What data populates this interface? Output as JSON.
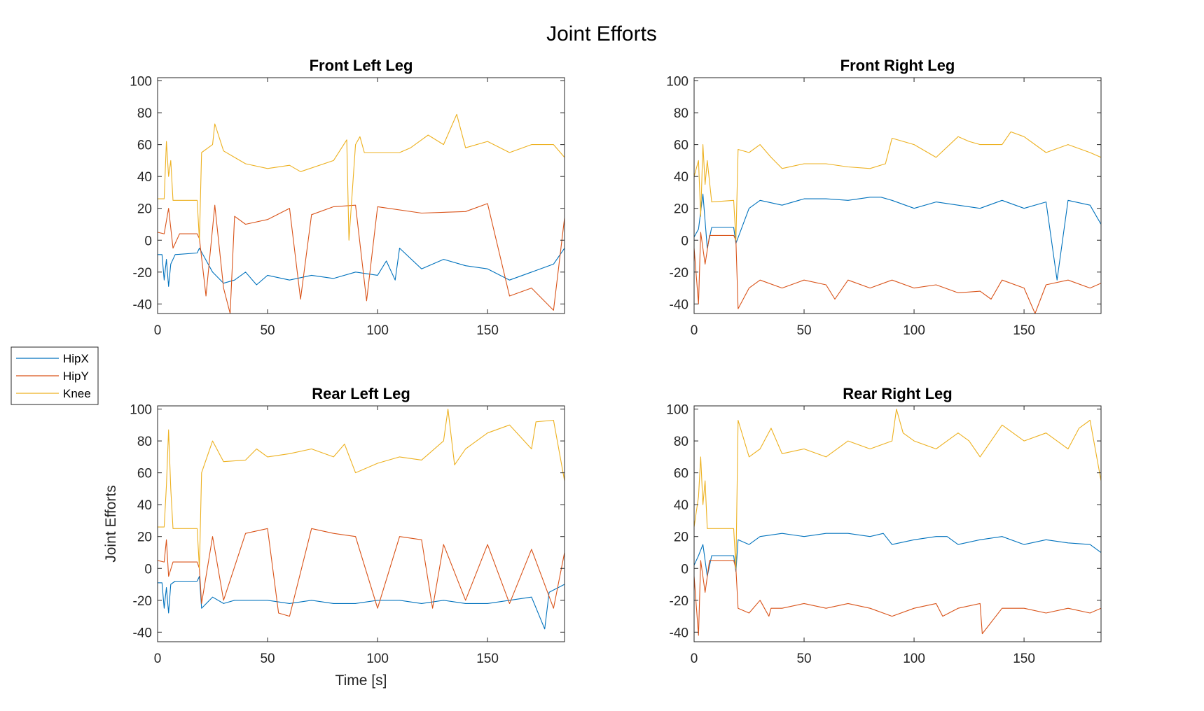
{
  "figure": {
    "title": "Joint Efforts"
  },
  "colors": {
    "HipX": "#0072BD",
    "HipY": "#D95319",
    "Knee": "#EDB120"
  },
  "legend": {
    "items": [
      "HipX",
      "HipY",
      "Knee"
    ],
    "location": "left-middle"
  },
  "chart_data": [
    {
      "type": "line",
      "title": "Front Left Leg",
      "xlabel": "",
      "ylabel": "",
      "xlim": [
        0,
        185
      ],
      "ylim": [
        -46,
        102
      ],
      "xticks": [
        "0",
        "50",
        "100",
        "150"
      ],
      "yticks": [
        "100",
        "80",
        "60",
        "40",
        "20",
        "0",
        "-20",
        "-40"
      ],
      "grid": false,
      "series": [
        {
          "name": "HipX",
          "x": [
            0,
            2,
            3,
            4,
            5,
            6,
            8,
            18,
            19,
            25,
            30,
            35,
            40,
            45,
            50,
            60,
            70,
            80,
            90,
            100,
            104,
            108,
            110,
            120,
            130,
            140,
            150,
            160,
            170,
            180,
            185
          ],
          "y": [
            -9,
            -9,
            -25,
            -12,
            -29,
            -15,
            -9,
            -8,
            -5,
            -20,
            -27,
            -25,
            -20,
            -28,
            -22,
            -25,
            -22,
            -24,
            -20,
            -22,
            -13,
            -25,
            -5,
            -18,
            -12,
            -16,
            -18,
            -25,
            -20,
            -15,
            -5
          ]
        },
        {
          "name": "HipY",
          "x": [
            0,
            3,
            5,
            7,
            10,
            18,
            19,
            22,
            26,
            30,
            33,
            35,
            40,
            50,
            60,
            65,
            70,
            80,
            90,
            95,
            100,
            120,
            140,
            150,
            160,
            170,
            180,
            185
          ],
          "y": [
            5,
            4,
            20,
            -5,
            4,
            4,
            1,
            -35,
            22,
            -30,
            -46,
            15,
            10,
            13,
            20,
            -37,
            16,
            21,
            22,
            -38,
            21,
            17,
            18,
            23,
            -35,
            -30,
            -44,
            14
          ]
        },
        {
          "name": "Knee",
          "x": [
            0,
            3,
            4,
            5,
            6,
            7,
            10,
            18,
            19,
            20,
            25,
            26,
            30,
            35,
            40,
            50,
            60,
            65,
            80,
            86,
            87,
            90,
            92,
            94,
            100,
            110,
            115,
            120,
            123,
            130,
            136,
            140,
            150,
            160,
            170,
            180,
            185
          ],
          "y": [
            26,
            26,
            62,
            40,
            50,
            25,
            25,
            25,
            0,
            55,
            60,
            73,
            56,
            52,
            48,
            45,
            47,
            43,
            50,
            63,
            0,
            60,
            65,
            55,
            55,
            55,
            58,
            63,
            66,
            60,
            79,
            58,
            62,
            55,
            60,
            60,
            52
          ]
        }
      ]
    },
    {
      "type": "line",
      "title": "Front Right Leg",
      "xlabel": "",
      "ylabel": "",
      "xlim": [
        0,
        185
      ],
      "ylim": [
        -46,
        102
      ],
      "xticks": [
        "0",
        "50",
        "100",
        "150"
      ],
      "yticks": [
        "100",
        "80",
        "60",
        "40",
        "20",
        "0",
        "-20",
        "-40"
      ],
      "grid": false,
      "series": [
        {
          "name": "HipX",
          "x": [
            0,
            2,
            4,
            6,
            8,
            18,
            19,
            25,
            30,
            40,
            50,
            60,
            70,
            80,
            85,
            90,
            100,
            110,
            120,
            130,
            140,
            150,
            160,
            165,
            170,
            180,
            185
          ],
          "y": [
            2,
            7,
            29,
            -5,
            8,
            8,
            -2,
            20,
            25,
            22,
            26,
            26,
            25,
            27,
            27,
            25,
            20,
            24,
            22,
            20,
            25,
            20,
            24,
            -25,
            25,
            22,
            10
          ]
        },
        {
          "name": "HipY",
          "x": [
            0,
            2,
            3,
            5,
            7,
            18,
            19,
            20,
            25,
            30,
            40,
            50,
            60,
            64,
            70,
            80,
            90,
            100,
            110,
            120,
            130,
            135,
            140,
            150,
            155,
            160,
            170,
            180,
            185
          ],
          "y": [
            -5,
            -40,
            5,
            -15,
            3,
            3,
            0,
            -43,
            -30,
            -25,
            -30,
            -25,
            -28,
            -37,
            -25,
            -30,
            -25,
            -30,
            -28,
            -33,
            -32,
            -37,
            -25,
            -30,
            -46,
            -28,
            -25,
            -30,
            -27
          ]
        },
        {
          "name": "Knee",
          "x": [
            0,
            2,
            3,
            4,
            5,
            6,
            8,
            18,
            19,
            20,
            25,
            30,
            35,
            40,
            50,
            60,
            70,
            80,
            87,
            90,
            100,
            110,
            120,
            125,
            130,
            140,
            144,
            150,
            160,
            170,
            180,
            185
          ],
          "y": [
            40,
            50,
            15,
            60,
            35,
            50,
            24,
            25,
            0,
            57,
            55,
            60,
            52,
            45,
            48,
            48,
            46,
            45,
            48,
            64,
            60,
            52,
            65,
            62,
            60,
            60,
            68,
            65,
            55,
            60,
            55,
            52
          ]
        }
      ]
    },
    {
      "type": "line",
      "title": "Rear Left Leg",
      "xlabel": "Time [s]",
      "ylabel": "Joint Efforts",
      "xlim": [
        0,
        185
      ],
      "ylim": [
        -46,
        102
      ],
      "xticks": [
        "0",
        "50",
        "100",
        "150"
      ],
      "yticks": [
        "100",
        "80",
        "60",
        "40",
        "20",
        "0",
        "-20",
        "-40"
      ],
      "grid": false,
      "series": [
        {
          "name": "HipX",
          "x": [
            0,
            2,
            3,
            4,
            5,
            6,
            8,
            18,
            19,
            20,
            25,
            30,
            35,
            40,
            50,
            60,
            70,
            80,
            90,
            100,
            110,
            120,
            130,
            140,
            150,
            160,
            170,
            176,
            178,
            185
          ],
          "y": [
            -9,
            -9,
            -25,
            -12,
            -28,
            -10,
            -8,
            -8,
            -5,
            -25,
            -18,
            -22,
            -20,
            -20,
            -20,
            -22,
            -20,
            -22,
            -22,
            -20,
            -20,
            -22,
            -20,
            -22,
            -22,
            -20,
            -18,
            -38,
            -15,
            -10
          ]
        },
        {
          "name": "HipY",
          "x": [
            0,
            3,
            4,
            5,
            7,
            18,
            19,
            20,
            25,
            30,
            40,
            50,
            55,
            60,
            70,
            80,
            90,
            100,
            110,
            120,
            125,
            130,
            140,
            150,
            160,
            170,
            180,
            185
          ],
          "y": [
            5,
            4,
            18,
            -5,
            4,
            4,
            0,
            -22,
            20,
            -20,
            22,
            25,
            -28,
            -30,
            25,
            22,
            20,
            -25,
            20,
            18,
            -25,
            15,
            -20,
            15,
            -22,
            12,
            -25,
            10
          ]
        },
        {
          "name": "Knee",
          "x": [
            0,
            3,
            4,
            5,
            6,
            7,
            8,
            18,
            19,
            20,
            25,
            30,
            40,
            45,
            50,
            60,
            70,
            80,
            85,
            90,
            100,
            110,
            120,
            130,
            132,
            135,
            140,
            150,
            160,
            170,
            172,
            180,
            185
          ],
          "y": [
            26,
            26,
            52,
            87,
            50,
            25,
            25,
            25,
            0,
            60,
            80,
            67,
            68,
            75,
            70,
            72,
            75,
            70,
            78,
            60,
            66,
            70,
            68,
            80,
            100,
            65,
            75,
            85,
            90,
            75,
            92,
            93,
            55
          ]
        }
      ]
    },
    {
      "type": "line",
      "title": "Rear Right Leg",
      "xlabel": "",
      "ylabel": "",
      "xlim": [
        0,
        185
      ],
      "ylim": [
        -46,
        102
      ],
      "xticks": [
        "0",
        "50",
        "100",
        "150"
      ],
      "yticks": [
        "100",
        "80",
        "60",
        "40",
        "20",
        "0",
        "-20",
        "-40"
      ],
      "grid": false,
      "series": [
        {
          "name": "HipX",
          "x": [
            0,
            2,
            4,
            6,
            8,
            18,
            19,
            20,
            25,
            30,
            40,
            50,
            60,
            70,
            80,
            86,
            90,
            100,
            110,
            115,
            120,
            130,
            140,
            150,
            160,
            170,
            180,
            185
          ],
          "y": [
            2,
            8,
            15,
            -5,
            8,
            8,
            -2,
            18,
            15,
            20,
            22,
            20,
            22,
            22,
            20,
            22,
            15,
            18,
            20,
            20,
            15,
            18,
            20,
            15,
            18,
            16,
            15,
            10
          ]
        },
        {
          "name": "HipY",
          "x": [
            0,
            2,
            3,
            5,
            7,
            18,
            19,
            20,
            25,
            30,
            34,
            35,
            40,
            50,
            60,
            70,
            80,
            90,
            100,
            110,
            113,
            120,
            130,
            131,
            140,
            150,
            160,
            170,
            180,
            185
          ],
          "y": [
            -5,
            -42,
            5,
            -15,
            5,
            5,
            0,
            -25,
            -28,
            -20,
            -30,
            -25,
            -25,
            -22,
            -25,
            -22,
            -25,
            -30,
            -25,
            -22,
            -30,
            -25,
            -22,
            -41,
            -25,
            -25,
            -28,
            -25,
            -28,
            -25
          ]
        },
        {
          "name": "Knee",
          "x": [
            0,
            2,
            3,
            4,
            5,
            6,
            8,
            18,
            19,
            20,
            25,
            30,
            35,
            40,
            50,
            60,
            70,
            80,
            90,
            92,
            95,
            100,
            110,
            120,
            125,
            130,
            140,
            150,
            160,
            170,
            175,
            180,
            185
          ],
          "y": [
            26,
            45,
            70,
            40,
            55,
            25,
            25,
            25,
            0,
            93,
            70,
            75,
            88,
            72,
            75,
            70,
            80,
            75,
            80,
            100,
            85,
            80,
            75,
            85,
            80,
            70,
            90,
            80,
            85,
            75,
            88,
            93,
            55
          ]
        }
      ]
    }
  ]
}
